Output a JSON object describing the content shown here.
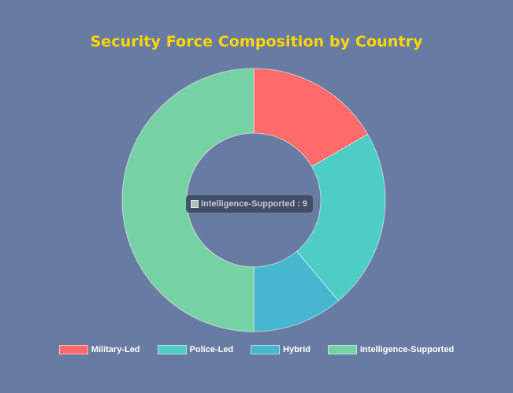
{
  "chart_data": {
    "type": "pie",
    "variant": "doughnut",
    "title": "Security Force Composition by Country",
    "categories": [
      "Military-Led",
      "Police-Led",
      "Hybrid",
      "Intelligence-Supported"
    ],
    "values": [
      3,
      4,
      2,
      9
    ],
    "colors": [
      "#ff6b6b",
      "#4ecdc4",
      "#45b7d1",
      "#76d1a3"
    ],
    "legend_position": "bottom",
    "tooltip": {
      "label": "Intelligence-Supported",
      "value": "9",
      "swatch_color": "#a5c4b4"
    }
  }
}
